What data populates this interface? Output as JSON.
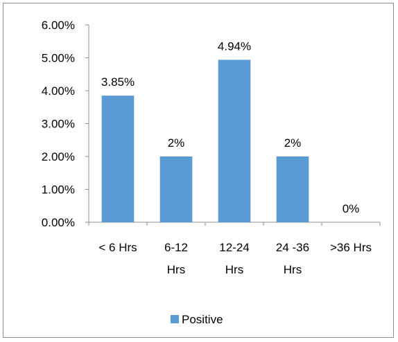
{
  "chart_data": {
    "type": "bar",
    "categories": [
      [
        "< 6 Hrs"
      ],
      [
        "6-12",
        "Hrs"
      ],
      [
        "12-24",
        "Hrs"
      ],
      [
        "24 -36",
        "Hrs"
      ],
      [
        ">36 Hrs"
      ]
    ],
    "values": [
      3.85,
      2.0,
      4.94,
      2.0,
      0.0
    ],
    "data_labels": [
      "3.85%",
      "2%",
      "4.94%",
      "2%",
      "0%"
    ],
    "y_ticks": [
      "0.00%",
      "1.00%",
      "2.00%",
      "3.00%",
      "4.00%",
      "5.00%",
      "6.00%"
    ],
    "ylim": [
      0,
      6
    ],
    "series": [
      {
        "name": "Positive",
        "color": "#5b9bd5"
      }
    ],
    "legend_position": "bottom",
    "grid": false
  }
}
